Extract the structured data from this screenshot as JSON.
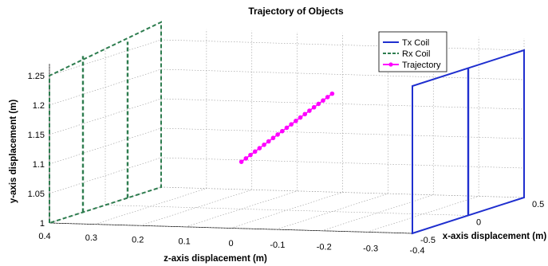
{
  "chart_data": {
    "type": "line",
    "title": "Trajectory of Objects",
    "xlabel": "x-axis displacement (m)",
    "ylabel": "y-axis displacement (m)",
    "zlabel": "z-axis displacement (m)",
    "x_ticks": [
      "-0.5",
      "0",
      "0.5"
    ],
    "y_ticks": [
      "1",
      "1.05",
      "1.1",
      "1.15",
      "1.2",
      "1.25"
    ],
    "z_ticks": [
      "0.4",
      "0.3",
      "0.2",
      "0.1",
      "0",
      "-0.1",
      "-0.2",
      "-0.3",
      "-0.4"
    ],
    "grid": true,
    "legend_position": "top-right",
    "legend": [
      {
        "name": "Tx Coil",
        "color": "#1f2fcf",
        "style": "solid"
      },
      {
        "name": "Rx Coil",
        "color": "#2e7d4f",
        "style": "dashed"
      },
      {
        "name": "Trajectory",
        "color": "#ff00ff",
        "style": "solid-marker"
      }
    ],
    "series": [
      {
        "name": "Tx Coil",
        "color": "#1f2fcf",
        "description_points": [
          [
            -0.5,
            1.0,
            -0.4
          ],
          [
            -0.5,
            1.25,
            -0.4
          ],
          [
            0.5,
            1.25,
            -0.4
          ],
          [
            0.5,
            1.0,
            -0.4
          ]
        ]
      },
      {
        "name": "Rx Coil",
        "color": "#2e7d4f",
        "description_points": [
          [
            -0.5,
            1.0,
            0.4
          ],
          [
            -0.5,
            1.25,
            0.4
          ],
          [
            0.5,
            1.25,
            0.4
          ],
          [
            0.5,
            1.0,
            0.4
          ]
        ]
      },
      {
        "name": "Trajectory",
        "color": "#ff00ff",
        "x": [
          0,
          0,
          0,
          0,
          0,
          0,
          0,
          0,
          0,
          0,
          0,
          0,
          0,
          0,
          0,
          0,
          0,
          0,
          0,
          0,
          0
        ],
        "y": [
          1.08,
          1.086,
          1.092,
          1.098,
          1.104,
          1.11,
          1.116,
          1.122,
          1.128,
          1.134,
          1.14,
          1.146,
          1.152,
          1.158,
          1.164,
          1.17,
          1.176,
          1.182,
          1.188,
          1.194,
          1.2
        ],
        "z": [
          0.1,
          0.09,
          0.08,
          0.07,
          0.06,
          0.05,
          0.04,
          0.03,
          0.02,
          0.01,
          0,
          -0.01,
          -0.02,
          -0.03,
          -0.04,
          -0.05,
          -0.06,
          -0.07,
          -0.08,
          -0.09,
          -0.1
        ]
      }
    ]
  }
}
